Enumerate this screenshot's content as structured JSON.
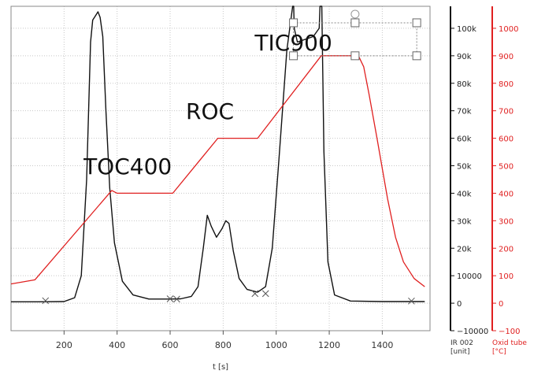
{
  "chart_data": {
    "type": "line",
    "title": "",
    "xlabel": "t [s]",
    "xlim": [
      0,
      1580
    ],
    "x_ticks": [
      200,
      400,
      600,
      800,
      1000,
      1200,
      1400
    ],
    "grid": true,
    "y_axes": [
      {
        "id": "ir",
        "title_lines": [
          "IR 002",
          "[unit]"
        ],
        "color": "#111111",
        "ylim": [
          -10000,
          108000
        ],
        "ticks": [
          {
            "value": 100000,
            "label": "100k"
          },
          {
            "value": 90000,
            "label": "90k"
          },
          {
            "value": 80000,
            "label": "80k"
          },
          {
            "value": 70000,
            "label": "70k"
          },
          {
            "value": 60000,
            "label": "60k"
          },
          {
            "value": 50000,
            "label": "50k"
          },
          {
            "value": 40000,
            "label": "40k"
          },
          {
            "value": 30000,
            "label": "30k"
          },
          {
            "value": 20000,
            "label": "20k"
          },
          {
            "value": 10000,
            "label": "10000"
          },
          {
            "value": 0,
            "label": "0"
          },
          {
            "value": -10000,
            "label": "−10000"
          }
        ]
      },
      {
        "id": "oven",
        "title_lines": [
          "Oxid tube",
          "[°C]"
        ],
        "color": "#e02020",
        "ylim": [
          -100,
          1080
        ],
        "ticks": [
          {
            "value": 1000,
            "label": "1000"
          },
          {
            "value": 900,
            "label": "900"
          },
          {
            "value": 800,
            "label": "800"
          },
          {
            "value": 700,
            "label": "700"
          },
          {
            "value": 600,
            "label": "600"
          },
          {
            "value": 500,
            "label": "500"
          },
          {
            "value": 400,
            "label": "400"
          },
          {
            "value": 300,
            "label": "300"
          },
          {
            "value": 200,
            "label": "200"
          },
          {
            "value": 100,
            "label": "100"
          },
          {
            "value": 0,
            "label": "0"
          },
          {
            "value": -100,
            "label": "−100"
          }
        ]
      }
    ],
    "series": [
      {
        "axis": "ir",
        "color": "#111111",
        "points": [
          [
            0,
            500
          ],
          [
            100,
            500
          ],
          [
            200,
            600
          ],
          [
            240,
            2000
          ],
          [
            265,
            10000
          ],
          [
            285,
            45000
          ],
          [
            300,
            95000
          ],
          [
            308,
            103000
          ],
          [
            318,
            104500
          ],
          [
            328,
            106000
          ],
          [
            336,
            104000
          ],
          [
            346,
            97000
          ],
          [
            358,
            70000
          ],
          [
            372,
            42000
          ],
          [
            390,
            22000
          ],
          [
            420,
            8000
          ],
          [
            460,
            3000
          ],
          [
            520,
            1500
          ],
          [
            600,
            1500
          ],
          [
            640,
            1600
          ],
          [
            680,
            2500
          ],
          [
            705,
            6000
          ],
          [
            725,
            20000
          ],
          [
            740,
            32000
          ],
          [
            755,
            28000
          ],
          [
            775,
            24000
          ],
          [
            795,
            27000
          ],
          [
            810,
            30000
          ],
          [
            822,
            29000
          ],
          [
            838,
            19000
          ],
          [
            860,
            9000
          ],
          [
            890,
            5000
          ],
          [
            930,
            4000
          ],
          [
            960,
            6000
          ],
          [
            985,
            20000
          ],
          [
            1010,
            52000
          ],
          [
            1040,
            92000
          ],
          [
            1062,
            108000
          ],
          [
            1066,
            108000
          ],
          [
            1068,
            100000
          ],
          [
            1080,
            95000
          ],
          [
            1140,
            97000
          ],
          [
            1162,
            100000
          ],
          [
            1165,
            108000
          ],
          [
            1172,
            108000
          ],
          [
            1180,
            55000
          ],
          [
            1195,
            15000
          ],
          [
            1220,
            3000
          ],
          [
            1280,
            800
          ],
          [
            1400,
            600
          ],
          [
            1560,
            600
          ]
        ]
      },
      {
        "axis": "oven",
        "color": "#e02020",
        "points": [
          [
            0,
            70
          ],
          [
            90,
            85
          ],
          [
            380,
            410
          ],
          [
            400,
            400
          ],
          [
            610,
            400
          ],
          [
            780,
            600
          ],
          [
            930,
            600
          ],
          [
            1170,
            900
          ],
          [
            1310,
            900
          ],
          [
            1330,
            860
          ],
          [
            1350,
            760
          ],
          [
            1380,
            600
          ],
          [
            1420,
            380
          ],
          [
            1450,
            240
          ],
          [
            1480,
            150
          ],
          [
            1520,
            90
          ],
          [
            1560,
            60
          ]
        ]
      }
    ],
    "integration_markers": [
      {
        "x": 130,
        "y": 900
      },
      {
        "x": 600,
        "y": 1600
      },
      {
        "x": 625,
        "y": 1500
      },
      {
        "x": 920,
        "y": 3500
      },
      {
        "x": 960,
        "y": 3500
      },
      {
        "x": 1510,
        "y": 800
      }
    ],
    "annotations": [
      {
        "text": "TOC400",
        "x": 440,
        "y": 47000
      },
      {
        "text": "ROC",
        "x": 750,
        "y": 67000
      },
      {
        "text": "TIC900",
        "x": 1065,
        "y": 92000
      }
    ],
    "selection_box": {
      "x0": 1065,
      "x1": 1530,
      "y_top": 102000,
      "y_bottom": 90000
    }
  }
}
